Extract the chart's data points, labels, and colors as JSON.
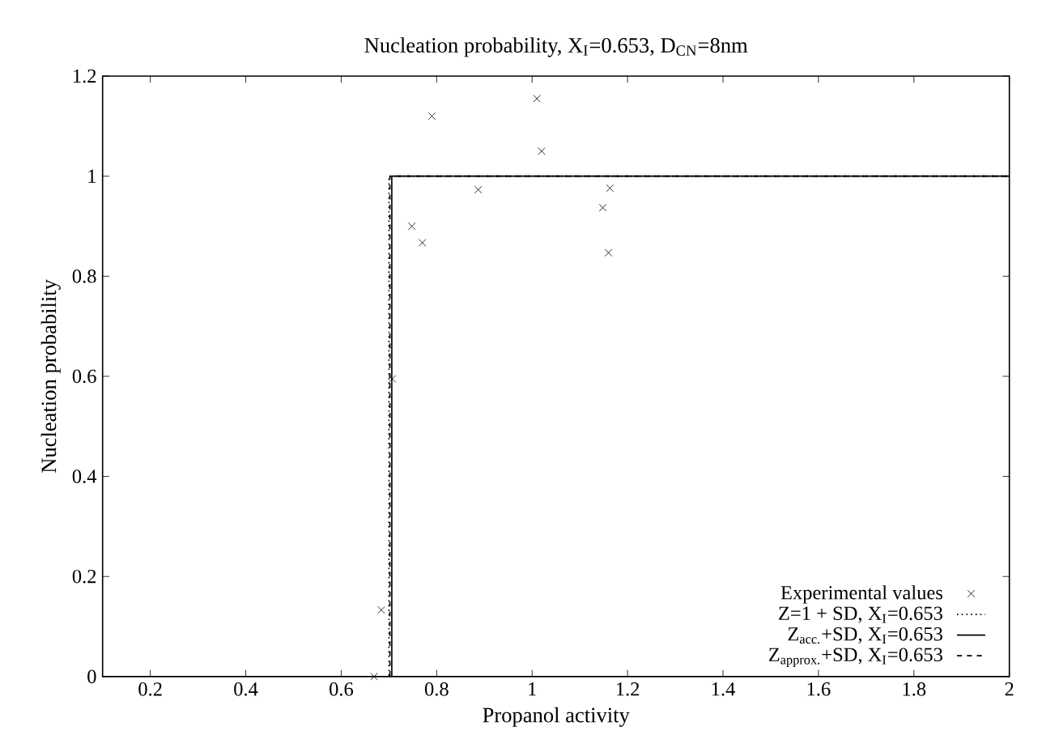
{
  "chart_data": {
    "type": "scatter",
    "title": "Nucleation probability, X$_{I}$=0.653, D$_{CN}$=8nm",
    "xlabel": "Propanol activity",
    "ylabel": "Nucleation probability",
    "xlim": [
      0.1,
      2
    ],
    "ylim": [
      0,
      1.2
    ],
    "xticks": [
      0.2,
      0.4,
      0.6,
      0.8,
      1,
      1.2,
      1.4,
      1.6,
      1.8,
      2
    ],
    "yticks": [
      0,
      0.2,
      0.4,
      0.6,
      0.8,
      1,
      1.2
    ],
    "grid": false,
    "legend": "bottom right",
    "series": [
      {
        "name": "Experimental values",
        "marker": "cross",
        "color": "#000000",
        "x": [
          0.669,
          0.684,
          0.707,
          0.748,
          0.77,
          0.79,
          0.887,
          1.01,
          1.02,
          1.148,
          1.16,
          1.163
        ],
        "values": [
          0,
          0.133,
          0.595,
          0.9,
          0.867,
          1.12,
          0.973,
          1.155,
          1.05,
          0.937,
          0.847,
          0.976
        ]
      },
      {
        "name": "Z=1 + SD, X$_{I}$=0.653",
        "type": "line",
        "line_style": "dotted",
        "marker": "none",
        "color": "#000000",
        "x": [
          0.1,
          0.7,
          0.7,
          2
        ],
        "values": [
          0,
          0,
          1,
          1
        ]
      },
      {
        "name": "Z$_{acc.}$+SD, X$_{I}$=0.653",
        "type": "line",
        "line_style": "solid",
        "marker": "none",
        "color": "#000000",
        "x": [
          0.1,
          0.706,
          0.706,
          2
        ],
        "values": [
          0,
          0,
          1,
          1
        ]
      },
      {
        "name": "Z$_{approx.}$+SD, X$_{I}$=0.653",
        "type": "line",
        "line_style": "dashed",
        "marker": "none",
        "color": "#000000",
        "x": [
          0.1,
          0.702,
          0.702,
          2
        ],
        "values": [
          0,
          0,
          1,
          1
        ]
      }
    ]
  }
}
